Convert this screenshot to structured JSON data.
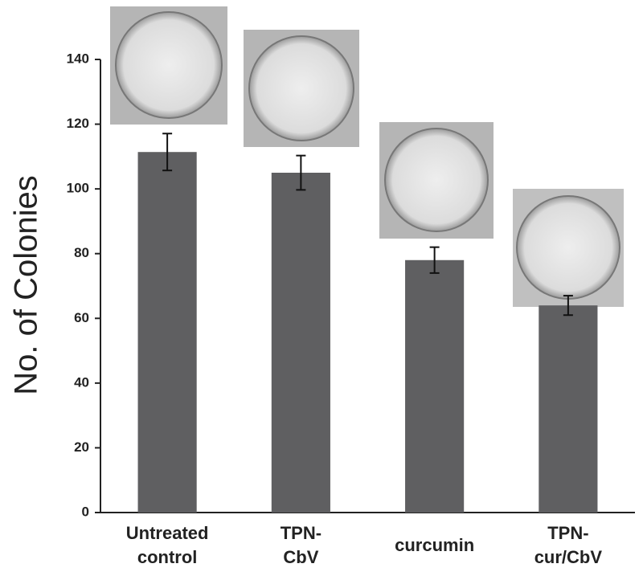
{
  "chart_data": {
    "type": "bar",
    "y_label": "No. of Colonies",
    "categories": [
      "Untreated\ncontrol",
      "TPN-\nCbV",
      "curcumin",
      "TPN-\ncur/CbV"
    ],
    "values": [
      111.4,
      105,
      78,
      64
    ],
    "errors": [
      5.7,
      5.3,
      4,
      3
    ],
    "color": "#5f5f61",
    "ylim": [
      0,
      140
    ],
    "yticks": [
      0,
      20,
      40,
      60,
      80,
      100,
      120,
      140
    ]
  }
}
